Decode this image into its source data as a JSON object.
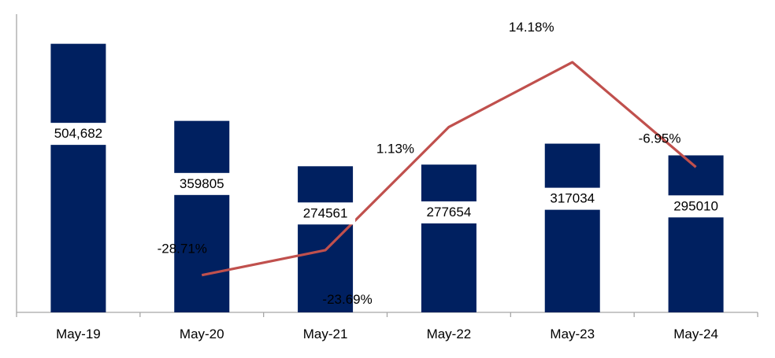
{
  "chart_data": {
    "type": "bar",
    "categories": [
      "May-19",
      "May-20",
      "May-21",
      "May-22",
      "May-23",
      "May-24"
    ],
    "series": [
      {
        "type": "bar",
        "values": [
          504682,
          359805,
          274561,
          277654,
          317034,
          295010
        ],
        "labels": [
          "504,682",
          "359805",
          "274561",
          "277654",
          "317034",
          "295010"
        ],
        "color": "#002060"
      },
      {
        "type": "line",
        "values": [
          null,
          -28.71,
          -23.69,
          1.13,
          14.18,
          -6.95
        ],
        "labels": [
          "",
          "-28.71%",
          "-23.69%",
          "1.13%",
          "14.18%",
          "-6.95%"
        ],
        "color": "#C0504D"
      }
    ],
    "bar_ylim": [
      0,
      550000
    ],
    "line_ylim": [
      -34,
      18
    ],
    "grid": false,
    "legend": "none"
  }
}
